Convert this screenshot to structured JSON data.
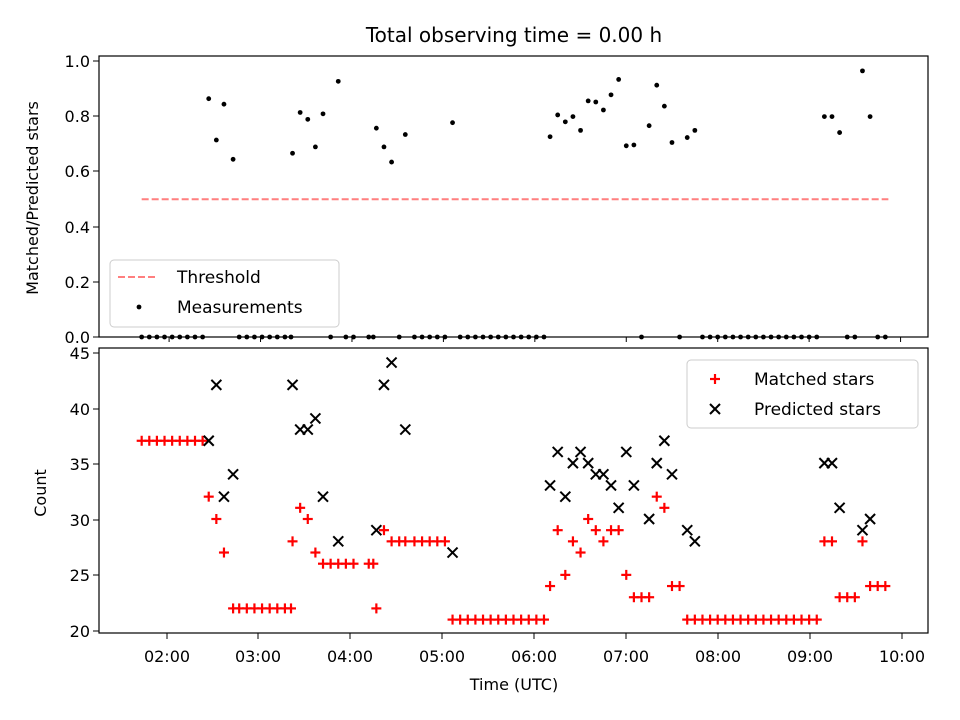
{
  "chart_data": [
    {
      "type": "scatter",
      "title": "Total observing time = 0.00 h",
      "ylabel": "Matched/Predicted stars",
      "xlim": [
        "01:14",
        "10:18"
      ],
      "ylim": [
        0,
        1.02
      ],
      "yticks": [
        "0.0",
        "0.2",
        "0.4",
        "0.6",
        "0.8",
        "1.0"
      ],
      "threshold": {
        "name": "Threshold",
        "y": 0.5,
        "x_range": [
          "01:42",
          "09:52"
        ],
        "color": "#ff7f7f",
        "style": "dashed"
      },
      "series": [
        {
          "name": "Measurements",
          "color": "#000000",
          "marker": "dot",
          "points": [
            [
              "01:42",
              0
            ],
            [
              "01:47",
              0
            ],
            [
              "01:52",
              0
            ],
            [
              "01:57",
              0
            ],
            [
              "02:02",
              0
            ],
            [
              "02:07",
              0
            ],
            [
              "02:12",
              0
            ],
            [
              "02:17",
              0
            ],
            [
              "02:22",
              0
            ],
            [
              "02:26",
              0.865
            ],
            [
              "02:31",
              0.715
            ],
            [
              "02:36",
              0.845
            ],
            [
              "02:42",
              0.645
            ],
            [
              "02:46",
              0
            ],
            [
              "02:51",
              0
            ],
            [
              "02:56",
              0
            ],
            [
              "03:01",
              0
            ],
            [
              "03:06",
              0
            ],
            [
              "03:11",
              0
            ],
            [
              "03:16",
              0
            ],
            [
              "03:20",
              0
            ],
            [
              "03:21",
              0.667
            ],
            [
              "03:26",
              0.815
            ],
            [
              "03:31",
              0.79
            ],
            [
              "03:36",
              0.69
            ],
            [
              "03:41",
              0.81
            ],
            [
              "03:46",
              0
            ],
            [
              "03:51",
              0.928
            ],
            [
              "03:56",
              0
            ],
            [
              "04:01",
              0
            ],
            [
              "04:11",
              0
            ],
            [
              "04:14",
              0
            ],
            [
              "04:16",
              0.758
            ],
            [
              "04:21",
              0.69
            ],
            [
              "04:26",
              0.635
            ],
            [
              "04:31",
              0
            ],
            [
              "04:35",
              0.735
            ],
            [
              "04:41",
              0
            ],
            [
              "04:46",
              0
            ],
            [
              "04:51",
              0
            ],
            [
              "04:56",
              0
            ],
            [
              "05:01",
              0
            ],
            [
              "05:06",
              0.778
            ],
            [
              "05:11",
              0
            ],
            [
              "05:16",
              0
            ],
            [
              "05:21",
              0
            ],
            [
              "05:26",
              0
            ],
            [
              "05:31",
              0
            ],
            [
              "05:36",
              0
            ],
            [
              "05:41",
              0
            ],
            [
              "05:46",
              0
            ],
            [
              "05:51",
              0
            ],
            [
              "05:56",
              0
            ],
            [
              "06:01",
              0
            ],
            [
              "06:06",
              0
            ],
            [
              "06:10",
              0.727
            ],
            [
              "06:15",
              0.806
            ],
            [
              "06:20",
              0.781
            ],
            [
              "06:25",
              0.8
            ],
            [
              "06:30",
              0.75
            ],
            [
              "06:35",
              0.857
            ],
            [
              "06:40",
              0.853
            ],
            [
              "06:45",
              0.824
            ],
            [
              "06:50",
              0.879
            ],
            [
              "06:55",
              0.935
            ],
            [
              "07:00",
              0.694
            ],
            [
              "07:05",
              0.697
            ],
            [
              "07:10",
              0
            ],
            [
              "07:15",
              0.767
            ],
            [
              "07:20",
              0.914
            ],
            [
              "07:25",
              0.838
            ],
            [
              "07:30",
              0.706
            ],
            [
              "07:35",
              0
            ],
            [
              "07:40",
              0.724
            ],
            [
              "07:45",
              0.75
            ],
            [
              "07:50",
              0
            ],
            [
              "07:55",
              0
            ],
            [
              "08:00",
              0
            ],
            [
              "08:05",
              0
            ],
            [
              "08:10",
              0
            ],
            [
              "08:15",
              0
            ],
            [
              "08:20",
              0
            ],
            [
              "08:25",
              0
            ],
            [
              "08:30",
              0
            ],
            [
              "08:35",
              0
            ],
            [
              "08:40",
              0
            ],
            [
              "08:45",
              0
            ],
            [
              "08:50",
              0
            ],
            [
              "08:55",
              0
            ],
            [
              "09:00",
              0
            ],
            [
              "09:05",
              0
            ],
            [
              "09:10",
              0.8
            ],
            [
              "09:15",
              0.8
            ],
            [
              "09:20",
              0.742
            ],
            [
              "09:25",
              0
            ],
            [
              "09:30",
              0
            ],
            [
              "09:35",
              0.966
            ],
            [
              "09:40",
              0.8
            ],
            [
              "09:45",
              0
            ],
            [
              "09:50",
              0
            ]
          ]
        }
      ],
      "legend": {
        "position": "lower-left",
        "entries": [
          "Threshold",
          "Measurements"
        ]
      }
    },
    {
      "type": "scatter",
      "xlabel": "Time (UTC)",
      "ylabel": "Count",
      "xlim": [
        "01:14",
        "10:18"
      ],
      "ylim": [
        19.8,
        45.3
      ],
      "xticks": [
        "02:00",
        "03:00",
        "04:00",
        "05:00",
        "06:00",
        "07:00",
        "08:00",
        "09:00",
        "10:00"
      ],
      "yticks": [
        "20",
        "25",
        "30",
        "35",
        "40",
        "45"
      ],
      "series": [
        {
          "name": "Matched stars",
          "color": "#ff0000",
          "marker": "plus",
          "points": [
            [
              "01:42",
              37
            ],
            [
              "01:47",
              37
            ],
            [
              "01:52",
              37
            ],
            [
              "01:57",
              37
            ],
            [
              "02:02",
              37
            ],
            [
              "02:07",
              37
            ],
            [
              "02:12",
              37
            ],
            [
              "02:17",
              37
            ],
            [
              "02:22",
              37
            ],
            [
              "02:26",
              32
            ],
            [
              "02:31",
              30
            ],
            [
              "02:36",
              27
            ],
            [
              "02:42",
              22
            ],
            [
              "02:46",
              22
            ],
            [
              "02:51",
              22
            ],
            [
              "02:56",
              22
            ],
            [
              "03:01",
              22
            ],
            [
              "03:06",
              22
            ],
            [
              "03:11",
              22
            ],
            [
              "03:16",
              22
            ],
            [
              "03:20",
              22
            ],
            [
              "03:21",
              28
            ],
            [
              "03:26",
              31
            ],
            [
              "03:31",
              30
            ],
            [
              "03:36",
              27
            ],
            [
              "03:41",
              26
            ],
            [
              "03:46",
              26
            ],
            [
              "03:51",
              26
            ],
            [
              "03:56",
              26
            ],
            [
              "04:01",
              26
            ],
            [
              "04:11",
              26
            ],
            [
              "04:14",
              26
            ],
            [
              "04:16",
              22
            ],
            [
              "04:21",
              29
            ],
            [
              "04:26",
              28
            ],
            [
              "04:31",
              28
            ],
            [
              "04:35",
              28
            ],
            [
              "04:41",
              28
            ],
            [
              "04:46",
              28
            ],
            [
              "04:51",
              28
            ],
            [
              "04:56",
              28
            ],
            [
              "05:01",
              28
            ],
            [
              "05:06",
              21
            ],
            [
              "05:11",
              21
            ],
            [
              "05:16",
              21
            ],
            [
              "05:21",
              21
            ],
            [
              "05:26",
              21
            ],
            [
              "05:31",
              21
            ],
            [
              "05:36",
              21
            ],
            [
              "05:41",
              21
            ],
            [
              "05:46",
              21
            ],
            [
              "05:51",
              21
            ],
            [
              "05:56",
              21
            ],
            [
              "06:01",
              21
            ],
            [
              "06:06",
              21
            ],
            [
              "06:10",
              24
            ],
            [
              "06:15",
              29
            ],
            [
              "06:20",
              25
            ],
            [
              "06:25",
              28
            ],
            [
              "06:30",
              27
            ],
            [
              "06:35",
              30
            ],
            [
              "06:40",
              29
            ],
            [
              "06:45",
              28
            ],
            [
              "06:50",
              29
            ],
            [
              "06:55",
              29
            ],
            [
              "07:00",
              25
            ],
            [
              "07:05",
              23
            ],
            [
              "07:10",
              23
            ],
            [
              "07:15",
              23
            ],
            [
              "07:20",
              32
            ],
            [
              "07:25",
              31
            ],
            [
              "07:30",
              24
            ],
            [
              "07:35",
              24
            ],
            [
              "07:40",
              21
            ],
            [
              "07:45",
              21
            ],
            [
              "07:50",
              21
            ],
            [
              "07:55",
              21
            ],
            [
              "08:00",
              21
            ],
            [
              "08:05",
              21
            ],
            [
              "08:10",
              21
            ],
            [
              "08:15",
              21
            ],
            [
              "08:20",
              21
            ],
            [
              "08:25",
              21
            ],
            [
              "08:30",
              21
            ],
            [
              "08:35",
              21
            ],
            [
              "08:40",
              21
            ],
            [
              "08:45",
              21
            ],
            [
              "08:50",
              21
            ],
            [
              "08:55",
              21
            ],
            [
              "09:00",
              21
            ],
            [
              "09:05",
              21
            ],
            [
              "09:10",
              28
            ],
            [
              "09:15",
              28
            ],
            [
              "09:20",
              23
            ],
            [
              "09:25",
              23
            ],
            [
              "09:30",
              23
            ],
            [
              "09:35",
              28
            ],
            [
              "09:40",
              24
            ],
            [
              "09:45",
              24
            ],
            [
              "09:50",
              24
            ]
          ]
        },
        {
          "name": "Predicted stars",
          "color": "#000000",
          "marker": "x",
          "points": [
            [
              "02:26",
              37
            ],
            [
              "02:31",
              42
            ],
            [
              "02:36",
              32
            ],
            [
              "02:42",
              34
            ],
            [
              "03:21",
              42
            ],
            [
              "03:26",
              38
            ],
            [
              "03:31",
              38
            ],
            [
              "03:36",
              39
            ],
            [
              "03:41",
              32
            ],
            [
              "03:51",
              28
            ],
            [
              "04:16",
              29
            ],
            [
              "04:21",
              42
            ],
            [
              "04:26",
              44
            ],
            [
              "04:35",
              38
            ],
            [
              "05:06",
              27
            ],
            [
              "06:10",
              33
            ],
            [
              "06:15",
              36
            ],
            [
              "06:20",
              32
            ],
            [
              "06:25",
              35
            ],
            [
              "06:30",
              36
            ],
            [
              "06:35",
              35
            ],
            [
              "06:40",
              34
            ],
            [
              "06:45",
              34
            ],
            [
              "06:50",
              33
            ],
            [
              "06:55",
              31
            ],
            [
              "07:00",
              36
            ],
            [
              "07:05",
              33
            ],
            [
              "07:15",
              30
            ],
            [
              "07:20",
              35
            ],
            [
              "07:25",
              37
            ],
            [
              "07:30",
              34
            ],
            [
              "07:40",
              29
            ],
            [
              "07:45",
              28
            ],
            [
              "09:10",
              35
            ],
            [
              "09:15",
              35
            ],
            [
              "09:20",
              31
            ],
            [
              "09:35",
              29
            ],
            [
              "09:40",
              30
            ]
          ]
        }
      ],
      "legend": {
        "position": "top-right",
        "entries": [
          "Matched stars",
          "Predicted stars"
        ]
      }
    }
  ]
}
